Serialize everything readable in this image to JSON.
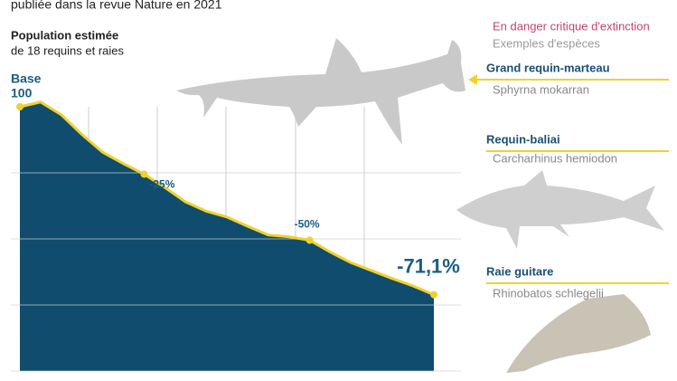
{
  "chart_data": {
    "type": "area",
    "header": "publiée dans la revue Nature en 2021",
    "title": "Population estimée",
    "subtitle": "de 18 requins et raies",
    "base_label": "Base",
    "categories": [
      null,
      null,
      null,
      null,
      null,
      null,
      null,
      null,
      null,
      null,
      null,
      null,
      null,
      null,
      null,
      null,
      null,
      null,
      null,
      null,
      null
    ],
    "values": [
      100,
      101.8,
      97,
      89.5,
      82.8,
      78.5,
      74.5,
      69.5,
      64,
      60.5,
      58.3,
      54.8,
      51.5,
      50.8,
      49.5,
      45,
      41,
      38,
      35,
      32.2,
      28.9
    ],
    "color": "#0f4c6e",
    "line_color": "#f0d12c",
    "ylim": [
      0,
      100
    ],
    "ygrid": [
      0,
      25,
      50,
      75
    ],
    "yticks": [
      100
    ],
    "annotations": [
      "-25%",
      "-50%",
      "-71,1%"
    ],
    "legend": {
      "critical": "En danger critique d'extinction",
      "examples": "Exemples d'espèces"
    },
    "species": [
      {
        "name": "Grand requin-marteau",
        "latin": "Sphyrna mokarran"
      },
      {
        "name": "Requin-baliai",
        "latin": "Carcharhinus hemiodon"
      },
      {
        "name": "Raie guitare",
        "latin": "Rhinobatos schlegelii"
      }
    ]
  }
}
